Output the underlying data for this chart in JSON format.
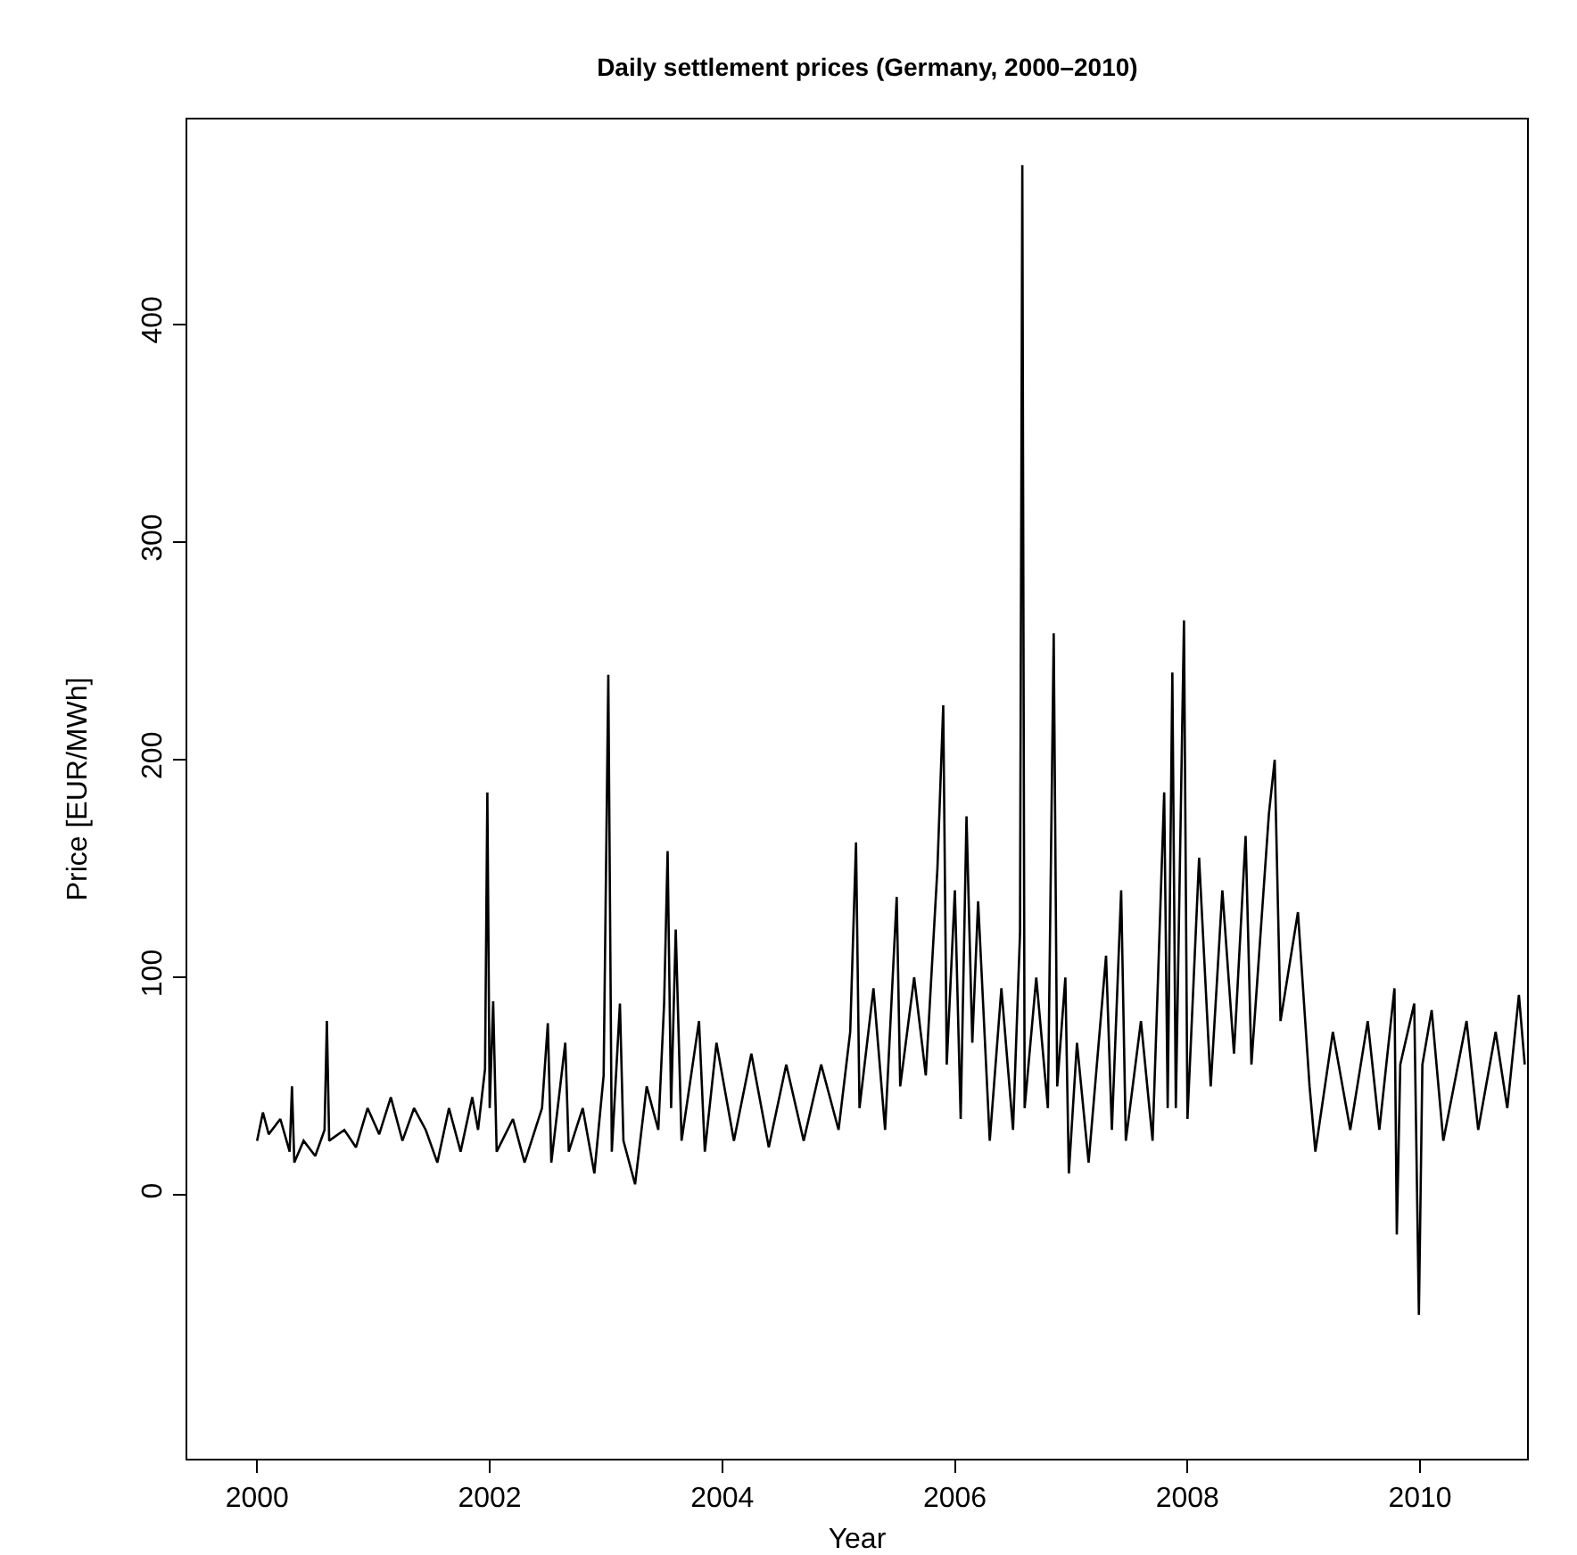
{
  "chart_data": {
    "type": "line",
    "title": "Daily settlement prices (Germany, 2000–2010)",
    "xlabel": "Year",
    "ylabel": "Price [EUR/MWh]",
    "xlim": [
      1999.4,
      2010.92
    ],
    "ylim": [
      -121,
      494
    ],
    "xticks": [
      2000,
      2002,
      2004,
      2006,
      2008,
      2010
    ],
    "yticks": [
      0,
      100,
      200,
      300,
      400
    ],
    "grid": false,
    "marker": "none",
    "line_style": "solid",
    "series": [
      {
        "color": "#000000",
        "x": [
          2000.0,
          2000.05,
          2000.1,
          2000.2,
          2000.28,
          2000.3,
          2000.32,
          2000.4,
          2000.5,
          2000.58,
          2000.6,
          2000.62,
          2000.75,
          2000.85,
          2000.95,
          2001.05,
          2001.15,
          2001.25,
          2001.35,
          2001.45,
          2001.55,
          2001.65,
          2001.75,
          2001.85,
          2001.9,
          2001.96,
          2001.98,
          2002.0,
          2002.03,
          2002.06,
          2002.2,
          2002.3,
          2002.45,
          2002.5,
          2002.53,
          2002.65,
          2002.68,
          2002.8,
          2002.9,
          2002.98,
          2003.02,
          2003.05,
          2003.12,
          2003.15,
          2003.25,
          2003.35,
          2003.45,
          2003.5,
          2003.53,
          2003.56,
          2003.6,
          2003.65,
          2003.8,
          2003.85,
          2003.95,
          2004.1,
          2004.25,
          2004.4,
          2004.55,
          2004.7,
          2004.85,
          2005.0,
          2005.1,
          2005.15,
          2005.18,
          2005.3,
          2005.4,
          2005.5,
          2005.53,
          2005.65,
          2005.75,
          2005.85,
          2005.9,
          2005.93,
          2006.0,
          2006.05,
          2006.1,
          2006.15,
          2006.2,
          2006.3,
          2006.4,
          2006.5,
          2006.56,
          2006.58,
          2006.6,
          2006.7,
          2006.8,
          2006.85,
          2006.88,
          2006.95,
          2006.98,
          2007.05,
          2007.15,
          2007.3,
          2007.35,
          2007.43,
          2007.47,
          2007.6,
          2007.7,
          2007.8,
          2007.83,
          2007.87,
          2007.9,
          2007.97,
          2008.0,
          2008.1,
          2008.2,
          2008.3,
          2008.4,
          2008.5,
          2008.55,
          2008.7,
          2008.75,
          2008.8,
          2008.95,
          2009.05,
          2009.1,
          2009.25,
          2009.4,
          2009.55,
          2009.65,
          2009.78,
          2009.8,
          2009.83,
          2009.95,
          2009.99,
          2010.02,
          2010.1,
          2010.2,
          2010.4,
          2010.5,
          2010.65,
          2010.75,
          2010.85,
          2010.9
        ],
        "values": [
          25,
          38,
          28,
          35,
          20,
          50,
          15,
          25,
          18,
          30,
          80,
          25,
          30,
          22,
          40,
          28,
          45,
          25,
          40,
          30,
          15,
          40,
          20,
          45,
          30,
          58,
          185,
          40,
          89,
          20,
          35,
          15,
          40,
          79,
          15,
          70,
          20,
          40,
          10,
          55,
          239,
          20,
          88,
          25,
          5,
          50,
          30,
          88,
          158,
          40,
          122,
          25,
          80,
          20,
          70,
          25,
          65,
          22,
          60,
          25,
          60,
          30,
          75,
          162,
          40,
          95,
          30,
          137,
          50,
          100,
          55,
          150,
          225,
          60,
          140,
          35,
          174,
          70,
          135,
          25,
          95,
          30,
          120,
          473,
          40,
          100,
          40,
          258,
          50,
          100,
          10,
          70,
          15,
          110,
          30,
          140,
          25,
          80,
          25,
          185,
          40,
          240,
          40,
          264,
          35,
          155,
          50,
          140,
          65,
          165,
          60,
          175,
          200,
          80,
          130,
          50,
          20,
          75,
          30,
          80,
          30,
          95,
          -18,
          60,
          88,
          -55,
          60,
          85,
          25,
          80,
          30,
          75,
          40,
          92,
          60
        ]
      }
    ]
  }
}
